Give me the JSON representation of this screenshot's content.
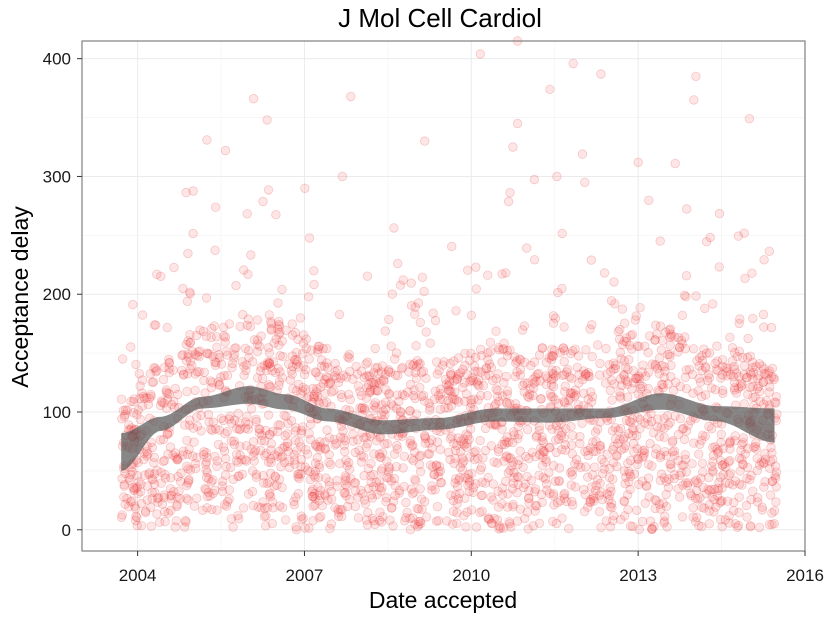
{
  "chart_data": {
    "type": "scatter",
    "title": "J Mol Cell Cardiol",
    "xlabel": "Date accepted",
    "ylabel": "Acceptance delay",
    "x_ticks": [
      "2004",
      "2007",
      "2010",
      "2013",
      "2016"
    ],
    "y_ticks": [
      "0",
      "100",
      "200",
      "300",
      "400"
    ],
    "xlim": [
      "2003-01-01",
      "2016-01-01"
    ],
    "ylim": [
      -18,
      415
    ],
    "grid": true,
    "point_color": "#f8766d",
    "band_color": "#595959",
    "smooth": {
      "x": [
        "2003-09-15",
        "2004-06-01",
        "2005-03-01",
        "2006-01-01",
        "2006-09-01",
        "2007-06-01",
        "2008-06-01",
        "2009-06-01",
        "2010-06-01",
        "2011-06-01",
        "2012-06-01",
        "2013-06-01",
        "2014-06-01",
        "2015-06-15"
      ],
      "lower": [
        50,
        84,
        103,
        107,
        102,
        92,
        81,
        85,
        92,
        91,
        95,
        102,
        92,
        74
      ],
      "upper": [
        82,
        96,
        113,
        122,
        115,
        103,
        93,
        95,
        103,
        103,
        103,
        116,
        105,
        103
      ]
    },
    "scatter_summary": {
      "x_range": [
        "2003-09-15",
        "2015-07-01"
      ],
      "approx_point_count": 2400,
      "high_outliers": [
        {
          "x": "2010-11-01",
          "y": 415
        },
        {
          "x": "2010-03-01",
          "y": 404
        },
        {
          "x": "2011-11-01",
          "y": 396
        },
        {
          "x": "2012-05-01",
          "y": 387
        },
        {
          "x": "2014-01-15",
          "y": 385
        },
        {
          "x": "2011-06-01",
          "y": 374
        },
        {
          "x": "2006-02-01",
          "y": 366
        },
        {
          "x": "2007-11-01",
          "y": 368
        },
        {
          "x": "2014-01-01",
          "y": 365
        },
        {
          "x": "2006-05-01",
          "y": 348
        },
        {
          "x": "2015-01-01",
          "y": 349
        },
        {
          "x": "2010-11-01",
          "y": 345
        },
        {
          "x": "2005-04-01",
          "y": 331
        },
        {
          "x": "2009-03-01",
          "y": 330
        },
        {
          "x": "2010-10-01",
          "y": 325
        },
        {
          "x": "2005-08-01",
          "y": 322
        },
        {
          "x": "2012-01-01",
          "y": 319
        },
        {
          "x": "2013-01-01",
          "y": 312
        },
        {
          "x": "2013-09-01",
          "y": 311
        }
      ]
    }
  }
}
